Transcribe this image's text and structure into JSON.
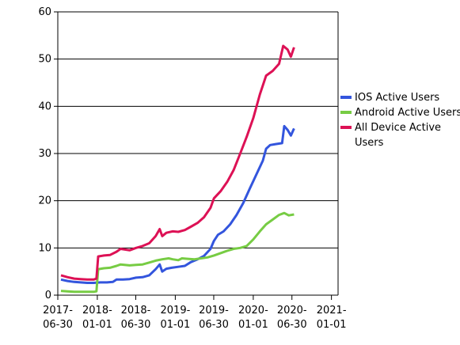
{
  "chart_data": {
    "type": "line",
    "title": "",
    "xlabel": "",
    "ylabel": "",
    "ylim": [
      0,
      60
    ],
    "xlim": [
      "2017-06-30",
      "2021-02-01"
    ],
    "yticks": [
      0,
      10,
      20,
      30,
      40,
      50,
      60
    ],
    "xticks": [
      {
        "date": "2017-06-30",
        "line1": "2017-",
        "line2": "06-30"
      },
      {
        "date": "2018-01-01",
        "line1": "2018-",
        "line2": "01-01"
      },
      {
        "date": "2018-06-30",
        "line1": "2018-",
        "line2": "06-30"
      },
      {
        "date": "2019-01-01",
        "line1": "2019-",
        "line2": "01-01"
      },
      {
        "date": "2019-06-30",
        "line1": "2019-",
        "line2": "06-30"
      },
      {
        "date": "2020-01-01",
        "line1": "2020-",
        "line2": "01-01"
      },
      {
        "date": "2020-06-30",
        "line1": "2020-",
        "line2": "06-30"
      },
      {
        "date": "2021-01-01",
        "line1": "2021-",
        "line2": "01-01"
      }
    ],
    "grid": "horizontal",
    "legend_position": "right",
    "series": [
      {
        "name": "IOS Active Users",
        "color": "#3355dd",
        "points": [
          [
            "2017-07-15",
            3.3
          ],
          [
            "2017-08-15",
            3.0
          ],
          [
            "2017-09-15",
            2.8
          ],
          [
            "2017-10-15",
            2.7
          ],
          [
            "2017-11-15",
            2.6
          ],
          [
            "2017-12-15",
            2.6
          ],
          [
            "2018-01-15",
            2.7
          ],
          [
            "2018-02-15",
            2.7
          ],
          [
            "2018-03-15",
            2.8
          ],
          [
            "2018-04-01",
            3.3
          ],
          [
            "2018-05-01",
            3.3
          ],
          [
            "2018-06-01",
            3.4
          ],
          [
            "2018-07-01",
            3.7
          ],
          [
            "2018-08-01",
            3.8
          ],
          [
            "2018-09-01",
            4.2
          ],
          [
            "2018-10-01",
            5.5
          ],
          [
            "2018-10-20",
            6.5
          ],
          [
            "2018-11-01",
            5.0
          ],
          [
            "2018-11-20",
            5.6
          ],
          [
            "2018-12-15",
            5.8
          ],
          [
            "2019-01-15",
            6.0
          ],
          [
            "2019-02-15",
            6.2
          ],
          [
            "2019-03-15",
            7.0
          ],
          [
            "2019-04-15",
            7.6
          ],
          [
            "2019-05-15",
            8.3
          ],
          [
            "2019-06-15",
            9.8
          ],
          [
            "2019-07-01",
            11.5
          ],
          [
            "2019-07-20",
            12.8
          ],
          [
            "2019-08-15",
            13.5
          ],
          [
            "2019-09-15",
            15.0
          ],
          [
            "2019-10-15",
            17.0
          ],
          [
            "2019-11-15",
            19.5
          ],
          [
            "2019-12-15",
            22.5
          ],
          [
            "2020-01-15",
            25.5
          ],
          [
            "2020-02-15",
            28.5
          ],
          [
            "2020-03-01",
            31.0
          ],
          [
            "2020-03-20",
            31.8
          ],
          [
            "2020-04-15",
            32.0
          ],
          [
            "2020-05-15",
            32.2
          ],
          [
            "2020-05-25",
            35.8
          ],
          [
            "2020-06-10",
            35.0
          ],
          [
            "2020-06-25",
            33.8
          ],
          [
            "2020-07-10",
            35.3
          ]
        ]
      },
      {
        "name": "Android Active Users",
        "color": "#77cc44",
        "points": [
          [
            "2017-07-15",
            0.9
          ],
          [
            "2017-08-15",
            0.8
          ],
          [
            "2017-09-15",
            0.7
          ],
          [
            "2017-10-15",
            0.7
          ],
          [
            "2017-11-15",
            0.7
          ],
          [
            "2017-12-15",
            0.7
          ],
          [
            "2017-12-28",
            0.8
          ],
          [
            "2018-01-05",
            5.5
          ],
          [
            "2018-02-01",
            5.7
          ],
          [
            "2018-03-01",
            5.8
          ],
          [
            "2018-04-01",
            6.2
          ],
          [
            "2018-04-20",
            6.5
          ],
          [
            "2018-06-01",
            6.3
          ],
          [
            "2018-07-01",
            6.4
          ],
          [
            "2018-08-01",
            6.5
          ],
          [
            "2018-09-01",
            6.9
          ],
          [
            "2018-10-01",
            7.3
          ],
          [
            "2018-11-01",
            7.6
          ],
          [
            "2018-12-01",
            7.8
          ],
          [
            "2018-12-20",
            7.6
          ],
          [
            "2019-01-15",
            7.4
          ],
          [
            "2019-02-01",
            7.8
          ],
          [
            "2019-03-01",
            7.7
          ],
          [
            "2019-04-01",
            7.6
          ],
          [
            "2019-05-01",
            7.8
          ],
          [
            "2019-06-01",
            8.0
          ],
          [
            "2019-07-01",
            8.4
          ],
          [
            "2019-08-01",
            8.9
          ],
          [
            "2019-09-01",
            9.4
          ],
          [
            "2019-10-01",
            9.8
          ],
          [
            "2019-11-01",
            10.0
          ],
          [
            "2019-12-01",
            10.4
          ],
          [
            "2020-01-01",
            11.8
          ],
          [
            "2020-02-01",
            13.5
          ],
          [
            "2020-03-01",
            15.0
          ],
          [
            "2020-04-01",
            16.0
          ],
          [
            "2020-05-01",
            17.0
          ],
          [
            "2020-05-25",
            17.4
          ],
          [
            "2020-06-15",
            16.9
          ],
          [
            "2020-07-10",
            17.1
          ]
        ]
      },
      {
        "name": "All Device Active Users",
        "color": "#dd1155",
        "points": [
          [
            "2017-07-15",
            4.2
          ],
          [
            "2017-08-15",
            3.8
          ],
          [
            "2017-09-15",
            3.5
          ],
          [
            "2017-10-15",
            3.4
          ],
          [
            "2017-11-15",
            3.3
          ],
          [
            "2017-12-15",
            3.3
          ],
          [
            "2017-12-28",
            3.5
          ],
          [
            "2018-01-05",
            8.2
          ],
          [
            "2018-02-01",
            8.4
          ],
          [
            "2018-03-01",
            8.5
          ],
          [
            "2018-04-01",
            9.2
          ],
          [
            "2018-04-20",
            9.8
          ],
          [
            "2018-06-01",
            9.5
          ],
          [
            "2018-07-01",
            10.0
          ],
          [
            "2018-08-01",
            10.4
          ],
          [
            "2018-09-01",
            11.0
          ],
          [
            "2018-10-01",
            12.5
          ],
          [
            "2018-10-20",
            14.0
          ],
          [
            "2018-11-01",
            12.5
          ],
          [
            "2018-11-20",
            13.2
          ],
          [
            "2018-12-20",
            13.5
          ],
          [
            "2019-01-15",
            13.4
          ],
          [
            "2019-02-15",
            13.8
          ],
          [
            "2019-03-15",
            14.5
          ],
          [
            "2019-04-15",
            15.3
          ],
          [
            "2019-05-15",
            16.5
          ],
          [
            "2019-06-15",
            18.5
          ],
          [
            "2019-07-01",
            20.5
          ],
          [
            "2019-08-01",
            22.0
          ],
          [
            "2019-09-01",
            24.0
          ],
          [
            "2019-10-01",
            26.5
          ],
          [
            "2019-11-01",
            30.0
          ],
          [
            "2019-12-01",
            33.5
          ],
          [
            "2020-01-01",
            37.5
          ],
          [
            "2020-02-01",
            42.5
          ],
          [
            "2020-03-01",
            46.5
          ],
          [
            "2020-04-01",
            47.5
          ],
          [
            "2020-05-01",
            49.0
          ],
          [
            "2020-05-20",
            52.8
          ],
          [
            "2020-06-10",
            52.0
          ],
          [
            "2020-06-25",
            50.5
          ],
          [
            "2020-07-10",
            52.5
          ]
        ]
      }
    ]
  }
}
